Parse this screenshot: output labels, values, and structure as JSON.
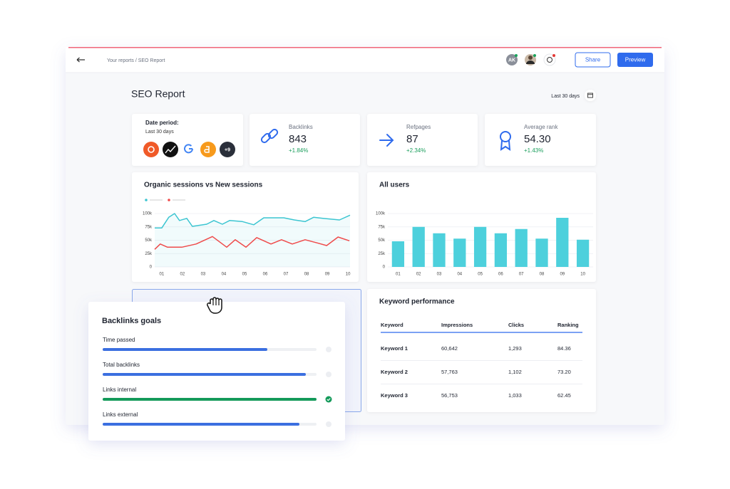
{
  "header": {
    "breadcrumb": "Your reports / SEO Report",
    "avatar": "AK",
    "share": "Share",
    "preview": "Preview"
  },
  "report": {
    "title": "SEO Report",
    "date_range": "Last 30 days"
  },
  "date_card": {
    "label": "Date period:",
    "value": "Last 30 days",
    "more_sources": "+9"
  },
  "kpis": [
    {
      "label": "Backlinks",
      "value": "843",
      "change": "+1.84%"
    },
    {
      "label": "Refpages",
      "value": "87",
      "change": "+2.34%"
    },
    {
      "label": "Average rank",
      "value": "54.30",
      "change": "+1.43%"
    }
  ],
  "sessions_chart": {
    "type": "line",
    "title": "Organic sessions vs New sessions",
    "xlim": [
      0.66,
      10.1
    ],
    "xticks": [
      {
        "value": 1,
        "label": "01"
      },
      {
        "value": 2,
        "label": "02"
      },
      {
        "value": 3,
        "label": "03"
      },
      {
        "value": 4,
        "label": "04"
      },
      {
        "value": 5,
        "label": "05"
      },
      {
        "value": 6,
        "label": "06"
      },
      {
        "value": 7,
        "label": "07"
      },
      {
        "value": 8,
        "label": "08"
      },
      {
        "value": 9,
        "label": "09"
      },
      10
    ],
    "ylim": [
      0,
      100000
    ],
    "yticks": [
      0,
      {
        "value": 25000,
        "label": "25k"
      },
      {
        "value": 50000,
        "label": "50k"
      },
      {
        "value": 75000,
        "label": "75k"
      },
      {
        "value": 100000,
        "label": "100k"
      }
    ],
    "grid": true,
    "series": [
      {
        "color": "#3cc5d1",
        "area": true,
        "x": [
          0.66,
          1,
          1.34,
          1.62,
          1.86,
          2.21,
          2.48,
          3.17,
          3.52,
          3.93,
          4.28,
          4.9,
          5.45,
          5.93,
          6.9,
          7.41,
          7.93,
          8.34,
          8.79,
          9.59,
          10.1
        ],
        "values": [
          73000,
          73000,
          93000,
          100000,
          87000,
          91000,
          76000,
          80000,
          87000,
          80000,
          87000,
          85000,
          79000,
          92000,
          92000,
          88000,
          85000,
          93000,
          91000,
          88000,
          97000
        ]
      },
      {
        "color": "#ef4b4b",
        "area": false,
        "x": [
          0.66,
          0.93,
          1.28,
          1.97,
          2.66,
          3.45,
          4.14,
          4.55,
          5.07,
          5.59,
          6.28,
          6.79,
          7.31,
          7.93,
          8.52,
          8.97,
          9.52,
          10.07
        ],
        "values": [
          33000,
          43000,
          37000,
          37000,
          43000,
          57000,
          37000,
          51000,
          37000,
          55000,
          43000,
          51000,
          43000,
          51000,
          45000,
          40000,
          56000,
          49000
        ]
      }
    ]
  },
  "users_chart": {
    "type": "bar",
    "title": "All users",
    "categories": [
      "01",
      "02",
      "03",
      "04",
      "05",
      "06",
      "07",
      "08",
      "09",
      "10"
    ],
    "values": [
      48000,
      75000,
      63000,
      53000,
      75000,
      63000,
      71000,
      53000,
      92000,
      51000
    ],
    "color": "#4dd0dc",
    "ylim": [
      0,
      100000
    ],
    "yticks": [
      0,
      {
        "value": 25000,
        "label": "25k"
      },
      {
        "value": 50000,
        "label": "50k"
      },
      {
        "value": 75000,
        "label": "75k"
      },
      {
        "value": 100000,
        "label": "100k"
      }
    ],
    "grid": true
  },
  "goals": {
    "title": "Backlinks goals",
    "items": [
      {
        "label": "Time passed",
        "progress": 77,
        "color": "#3b6fe0",
        "completed": false
      },
      {
        "label": "Total backlinks",
        "progress": 95,
        "color": "#3b6fe0",
        "completed": false
      },
      {
        "label": "Links internal",
        "progress": 100,
        "color": "#149a5a",
        "completed": true
      },
      {
        "label": "Links external",
        "progress": 92,
        "color": "#3b6fe0",
        "completed": false
      }
    ]
  },
  "keywords": {
    "title": "Keyword performance",
    "columns": [
      "Keyword",
      "Impressions",
      "Clicks",
      "Ranking"
    ],
    "rows": [
      [
        "Keyword 1",
        "60,642",
        "1,293",
        "84.36"
      ],
      [
        "Keyword 2",
        "57,763",
        "1,102",
        "73.20"
      ],
      [
        "Keyword 3",
        "56,753",
        "1,033",
        "62.45"
      ]
    ]
  }
}
